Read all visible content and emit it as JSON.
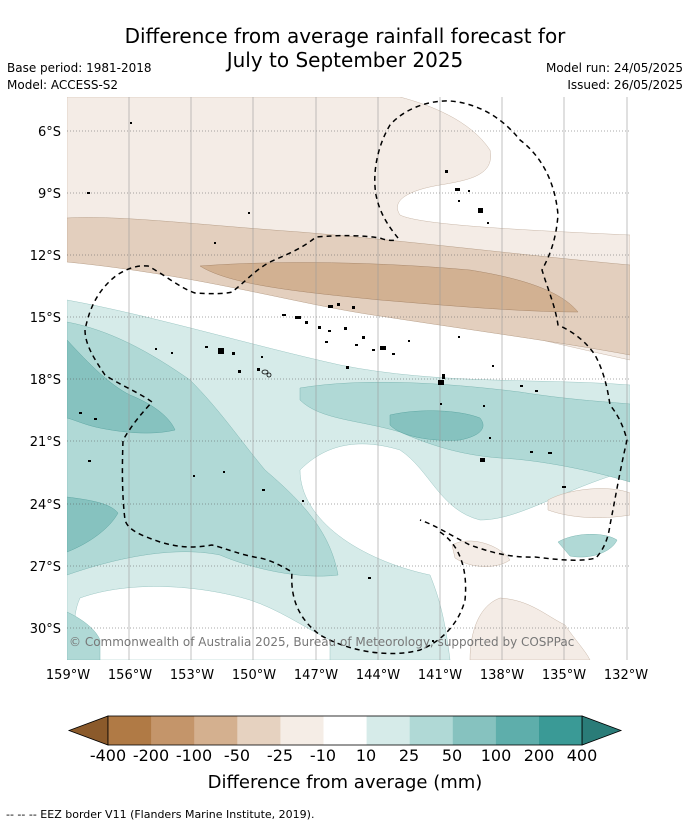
{
  "title_line1": "Difference from average rainfall forecast for",
  "title_line2": "July to September 2025",
  "base_period": "Base period: 1981-2018",
  "model": "Model: ACCESS-S2",
  "model_run": "Model run: 24/05/2025",
  "issued": "Issued: 26/05/2025",
  "copyright": "© Commonwealth of Australia 2025, Bureau of Meteorology, supported by COSPPac",
  "lat_labels": [
    "6°S",
    "9°S",
    "12°S",
    "15°S",
    "18°S",
    "21°S",
    "24°S",
    "27°S",
    "30°S"
  ],
  "lon_labels": [
    "159°W",
    "156°W",
    "153°W",
    "150°W",
    "147°W",
    "144°W",
    "141°W",
    "138°W",
    "135°W",
    "132°W"
  ],
  "colorbar": {
    "title": "Difference from average (mm)",
    "ticks": [
      "-400",
      "-200",
      "-100",
      "-50",
      "-25",
      "-10",
      "10",
      "25",
      "50",
      "100",
      "200",
      "400"
    ],
    "colors": [
      "#8b5a2b",
      "#b07a45",
      "#c4956a",
      "#d4b08f",
      "#e6d2c0",
      "#f5ede6",
      "#ffffff",
      "#d6ebe9",
      "#b0d9d6",
      "#86c2bf",
      "#5eaeab",
      "#3a9a96",
      "#2a7c78"
    ]
  },
  "legend_note": "--  --  -- EEZ border V11 (Flanders Marine Institute, 2019)."
}
